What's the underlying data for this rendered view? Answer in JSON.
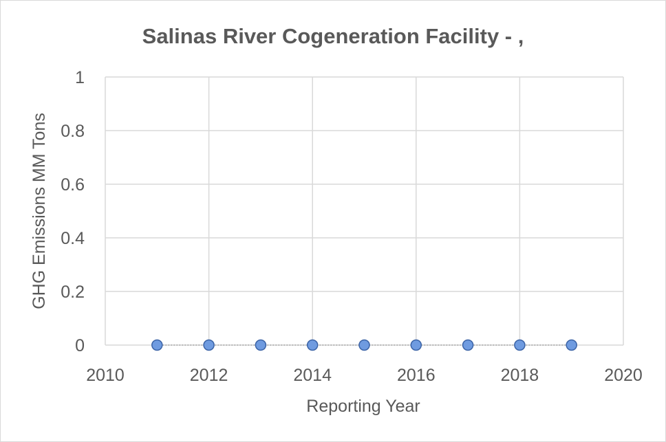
{
  "chart_data": {
    "type": "scatter",
    "title": "Salinas River Cogeneration Facility - ,",
    "xlabel": "Reporting Year",
    "ylabel": "GHG Emissions MM Tons",
    "xlim": [
      2010,
      2020
    ],
    "ylim": [
      0,
      1
    ],
    "x_ticks": [
      "2010",
      "2012",
      "2014",
      "2016",
      "2018",
      "2020"
    ],
    "y_ticks": [
      "0",
      "0.2",
      "0.4",
      "0.6",
      "0.8",
      "1"
    ],
    "grid": true,
    "legend": "none",
    "series": [
      {
        "x": [
          2011,
          2012,
          2013,
          2014,
          2015,
          2016,
          2017,
          2018,
          2019
        ],
        "y": [
          0,
          0,
          0,
          0,
          0,
          0,
          0,
          0,
          0
        ]
      }
    ],
    "colors": {
      "marker_fill": "#6f9be0",
      "marker_stroke": "#3b63a6",
      "line": "#a5a5a5",
      "grid": "#d9d9d9",
      "text": "#595959"
    }
  }
}
